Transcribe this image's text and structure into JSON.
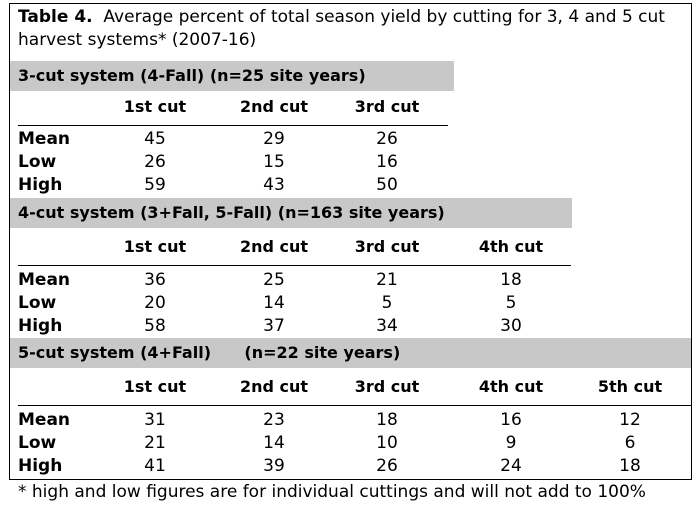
{
  "title": {
    "label": "Table 4.",
    "text": "Average percent of total season yield by cutting for 3, 4 and 5 cut harvest systems* (2007-16)"
  },
  "systems": [
    {
      "heading": "3-cut system (4-Fall) (n=25 site years)",
      "columns": [
        "1st cut",
        "2nd cut",
        "3rd cut"
      ],
      "rows": [
        {
          "label": "Mean",
          "values": [
            "45",
            "29",
            "26"
          ]
        },
        {
          "label": "Low",
          "values": [
            "26",
            "15",
            "16"
          ]
        },
        {
          "label": "High",
          "values": [
            "59",
            "43",
            "50"
          ]
        }
      ]
    },
    {
      "heading": "4-cut system (3+Fall, 5-Fall) (n=163 site years)",
      "columns": [
        "1st cut",
        "2nd cut",
        "3rd cut",
        "4th cut"
      ],
      "rows": [
        {
          "label": "Mean",
          "values": [
            "36",
            "25",
            "21",
            "18"
          ]
        },
        {
          "label": "Low",
          "values": [
            "20",
            "14",
            "5",
            "5"
          ]
        },
        {
          "label": "High",
          "values": [
            "58",
            "37",
            "34",
            "30"
          ]
        }
      ]
    },
    {
      "heading": "5-cut system (4+Fall)      (n=22 site years)",
      "columns": [
        "1st cut",
        "2nd cut",
        "3rd cut",
        "4th cut",
        "5th cut"
      ],
      "rows": [
        {
          "label": "Mean",
          "values": [
            "31",
            "23",
            "18",
            "16",
            "12"
          ]
        },
        {
          "label": "Low",
          "values": [
            "21",
            "14",
            "10",
            "9",
            "6"
          ]
        },
        {
          "label": "High",
          "values": [
            "41",
            "39",
            "26",
            "24",
            "18"
          ]
        }
      ]
    }
  ],
  "footnote": "* high and low figures are for individual cuttings and will not add to 100%"
}
